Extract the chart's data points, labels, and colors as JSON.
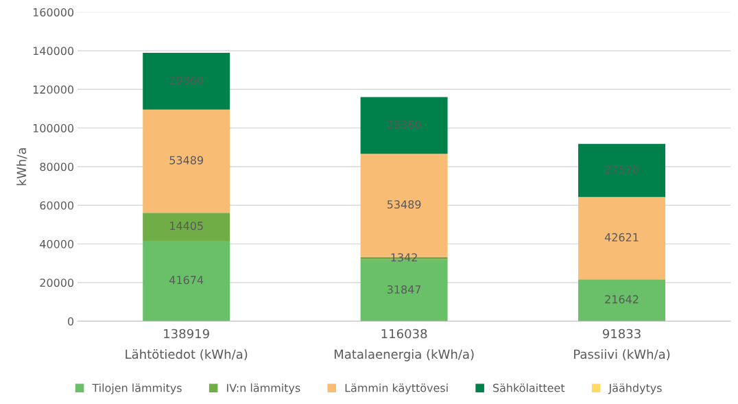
{
  "chart_data": {
    "type": "bar",
    "stacked": true,
    "ylabel": "kWh/a",
    "categories": [
      "138919\nLähtötiedot (kWh/a)",
      "116038\nMatalaenergia (kWh/a)",
      "91833\nPassiivi (kWh/a)"
    ],
    "series": [
      {
        "name": "Tilojen lämmitys",
        "color": "#6abf69",
        "values": [
          41674,
          31847,
          21642
        ]
      },
      {
        "name": "IV:n lämmitys",
        "color": "#70ad47",
        "values": [
          14405,
          1342,
          null
        ]
      },
      {
        "name": "Lämmin käyttövesi",
        "color": "#f9bc74",
        "values": [
          53489,
          53489,
          42621
        ]
      },
      {
        "name": "Sähkölaitteet",
        "color": "#00804a",
        "values": [
          29360,
          29360,
          27570
        ]
      },
      {
        "name": "Jäähdytys",
        "color": "#ffd966",
        "values": [
          null,
          null,
          null
        ]
      }
    ],
    "ylim": [
      0,
      160000
    ],
    "yticks": [
      0,
      20000,
      40000,
      60000,
      80000,
      100000,
      120000,
      140000,
      160000
    ],
    "grid": "y",
    "legend": "bottom",
    "data_labels": true
  }
}
